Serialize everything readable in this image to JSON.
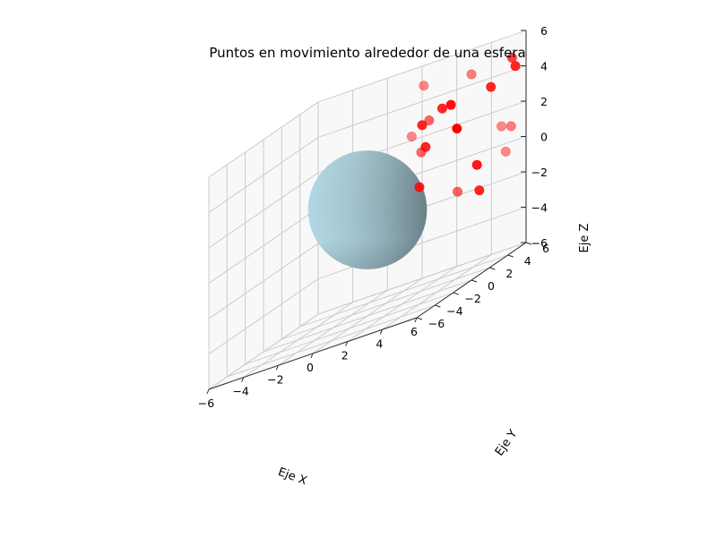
{
  "chart_data": {
    "type": "scatter3d",
    "title": "Puntos en movimiento alrededor de una esfera",
    "xlabel": "Eje X",
    "ylabel": "Eje Y",
    "zlabel": "Eje Z",
    "xlim": [
      -6,
      6
    ],
    "ylim": [
      -6,
      6
    ],
    "zlim": [
      -6,
      6
    ],
    "xticks": [
      "−6",
      "−4",
      "−2",
      "0",
      "2",
      "4",
      "6"
    ],
    "yticks": [
      "−6",
      "−4",
      "−2",
      "0",
      "2",
      "4",
      "6"
    ],
    "zticks": [
      "−6",
      "−4",
      "−2",
      "0",
      "2",
      "4",
      "6"
    ],
    "grid": true,
    "sphere": {
      "center": [
        0,
        0,
        0
      ],
      "radius": 3,
      "color": "#add8e6"
    },
    "point_color": "#ff0000",
    "series": [
      {
        "marker": "circle",
        "points": [
          {
            "x": 0.2,
            "y": 5.8,
            "z": 4.9,
            "alpha": 0.45
          },
          {
            "x": 2.9,
            "y": 5.9,
            "z": 4.6,
            "alpha": 0.5
          },
          {
            "x": 5.4,
            "y": 5.6,
            "z": 4.8,
            "alpha": 0.75
          },
          {
            "x": 5.7,
            "y": 5.4,
            "z": 4.3,
            "alpha": 0.85
          },
          {
            "x": 4.6,
            "y": 4.8,
            "z": 3.7,
            "alpha": 0.85
          },
          {
            "x": 2.0,
            "y": 4.4,
            "z": 3.5,
            "alpha": 0.85
          },
          {
            "x": 2.4,
            "y": 4.6,
            "z": 3.5,
            "alpha": 0.95
          },
          {
            "x": 1.3,
            "y": 4.3,
            "z": 3.1,
            "alpha": 0.6
          },
          {
            "x": 1.0,
            "y": 4.1,
            "z": 3.0,
            "alpha": 0.85
          },
          {
            "x": 0.5,
            "y": 3.9,
            "z": 2.6,
            "alpha": 0.45
          },
          {
            "x": 2.9,
            "y": 4.3,
            "z": 2.1,
            "alpha": 1.0
          },
          {
            "x": 1.2,
            "y": 4.1,
            "z": 1.7,
            "alpha": 0.85
          },
          {
            "x": 1.0,
            "y": 4.0,
            "z": 1.5,
            "alpha": 0.6
          },
          {
            "x": 5.0,
            "y": 5.2,
            "z": 1.2,
            "alpha": 0.45
          },
          {
            "x": 5.5,
            "y": 5.3,
            "z": 1.0,
            "alpha": 0.5
          },
          {
            "x": 1.0,
            "y": 3.8,
            "z": -0.4,
            "alpha": 0.85
          },
          {
            "x": 3.9,
            "y": 4.6,
            "z": -0.4,
            "alpha": 0.9
          },
          {
            "x": 5.3,
            "y": 5.1,
            "z": -0.3,
            "alpha": 0.45
          },
          {
            "x": 3.2,
            "y": 3.8,
            "z": -1.4,
            "alpha": 0.6
          },
          {
            "x": 4.3,
            "y": 4.1,
            "z": -1.8,
            "alpha": 0.85
          }
        ]
      }
    ]
  }
}
